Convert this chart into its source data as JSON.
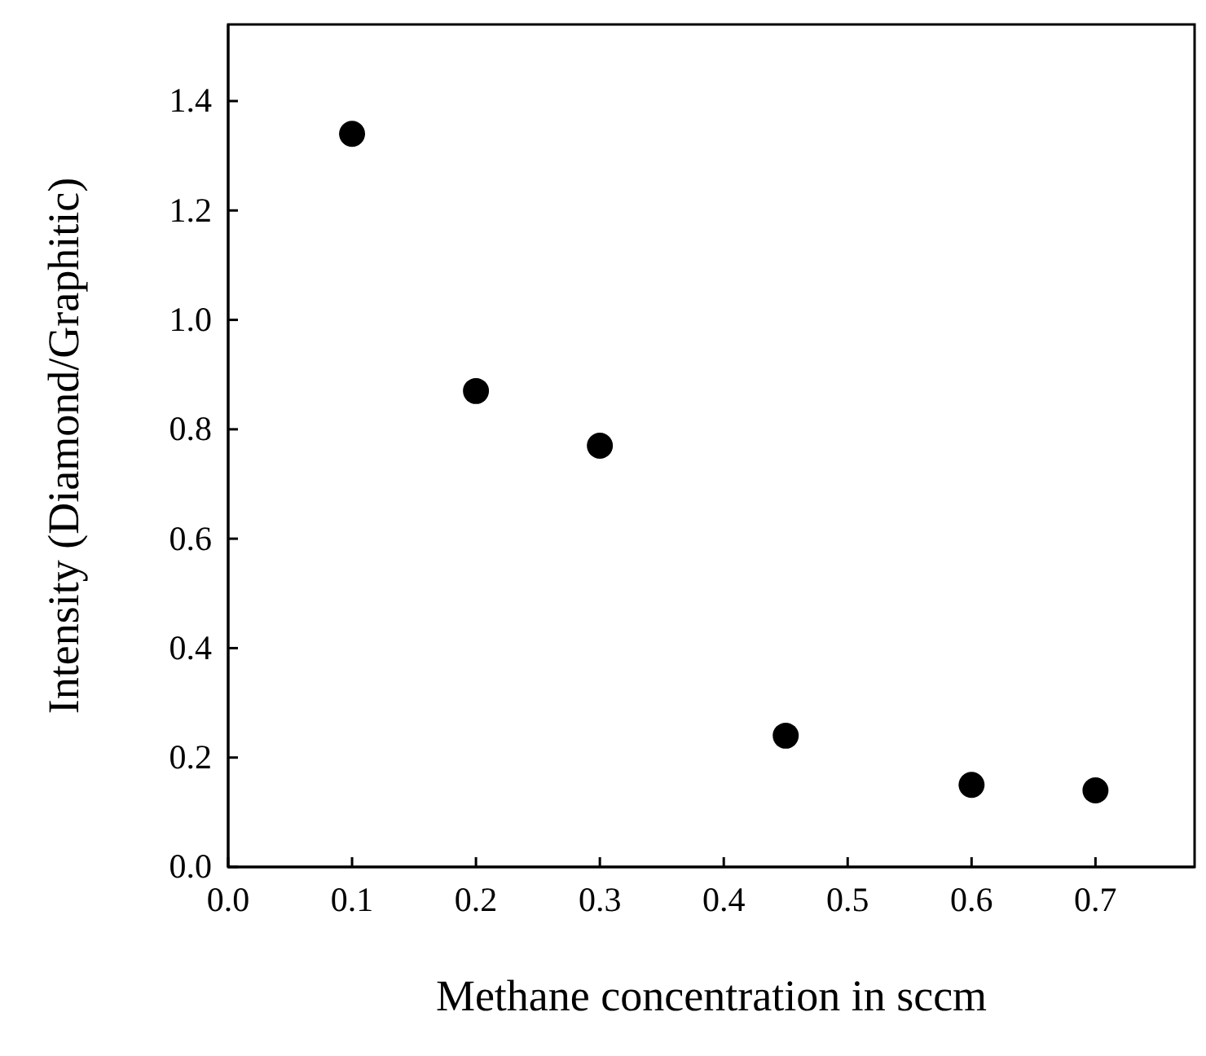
{
  "chart_data": {
    "type": "scatter",
    "xlabel": "Methane concentration in sccm",
    "ylabel": "Intensity (Diamond/Graphitic)",
    "x": [
      0.1,
      0.2,
      0.3,
      0.45,
      0.6,
      0.7
    ],
    "series": [
      {
        "color": "#000000",
        "values": [
          1.34,
          0.87,
          0.77,
          0.24,
          0.15,
          0.14
        ]
      }
    ],
    "xlim": [
      0,
      0.78
    ],
    "ylim": [
      0,
      1.54
    ],
    "xticks": [
      {
        "value": 0,
        "label": "0.0"
      },
      {
        "value": 0.1,
        "label": "0.1"
      },
      {
        "value": 0.2,
        "label": "0.2"
      },
      {
        "value": 0.3,
        "label": "0.3"
      },
      {
        "value": 0.4,
        "label": "0.4"
      },
      {
        "value": 0.5,
        "label": "0.5"
      },
      {
        "value": 0.6,
        "label": "0.6"
      },
      {
        "value": 0.7,
        "label": "0.7"
      }
    ],
    "yticks": [
      {
        "value": 0,
        "label": "0.0"
      },
      {
        "value": 0.2,
        "label": "0.2"
      },
      {
        "value": 0.4,
        "label": "0.4"
      },
      {
        "value": 0.6,
        "label": "0.6"
      },
      {
        "value": 0.8,
        "label": "0.8"
      },
      {
        "value": 1.0,
        "label": "1.0"
      },
      {
        "value": 1.2,
        "label": "1.2"
      },
      {
        "value": 1.4,
        "label": "1.4"
      }
    ],
    "marker": "circle",
    "grid": false
  }
}
